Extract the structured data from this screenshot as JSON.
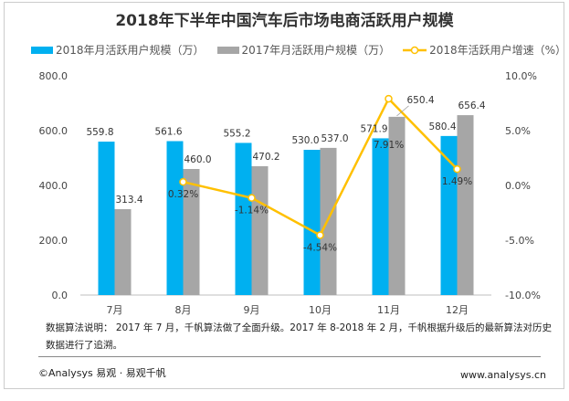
{
  "chart_data": {
    "type": "bar+line",
    "title": "2018年下半年中国汽车后市场电商活跃用户规模",
    "categories": [
      "7月",
      "8月",
      "9月",
      "10月",
      "11月",
      "12月"
    ],
    "series": [
      {
        "name": "2018年月活跃用户规模（万）",
        "type": "bar",
        "axis": "left",
        "color": "#00b0f0",
        "values": [
          559.8,
          561.6,
          555.2,
          530.0,
          571.9,
          580.4
        ],
        "labels": [
          "559.8",
          "561.6",
          "555.2",
          "530.0",
          "571.9",
          "580.4"
        ]
      },
      {
        "name": "2017年月活跃用户规模（万）",
        "type": "bar",
        "axis": "left",
        "color": "#a6a6a6",
        "values": [
          313.4,
          460.0,
          470.2,
          537.0,
          650.4,
          656.4
        ],
        "labels": [
          "313.4",
          "460.0",
          "470.2",
          "537.0",
          "650.4",
          "656.4"
        ]
      },
      {
        "name": "2018年活跃用户增速（%）",
        "type": "line",
        "axis": "right",
        "color": "#ffc000",
        "values": [
          null,
          0.32,
          -1.14,
          -4.54,
          7.91,
          1.49
        ],
        "labels": [
          "",
          "0.32%",
          "-1.14%",
          "-4.54%",
          "7.91%",
          "1.49%"
        ]
      }
    ],
    "ylim": [
      0,
      800
    ],
    "yticks": [
      "0.0",
      "200.0",
      "400.0",
      "600.0",
      "800.0"
    ],
    "y2lim": [
      -10,
      10
    ],
    "y2ticks": [
      "-10.0%",
      "-5.0%",
      "0.0%",
      "5.0%",
      "10.0%"
    ],
    "legend": "top",
    "grid": false
  },
  "footer": {
    "note": "数据算法说明： 2017 年 7 月，千帆算法做了全面升级。2017 年 8-2018 年 2 月，千帆根据升级后的最新算法对历史数据进行了追溯。",
    "copyright": "©Analysys 易观 · 易观千帆",
    "url": "www.analysys.cn"
  }
}
